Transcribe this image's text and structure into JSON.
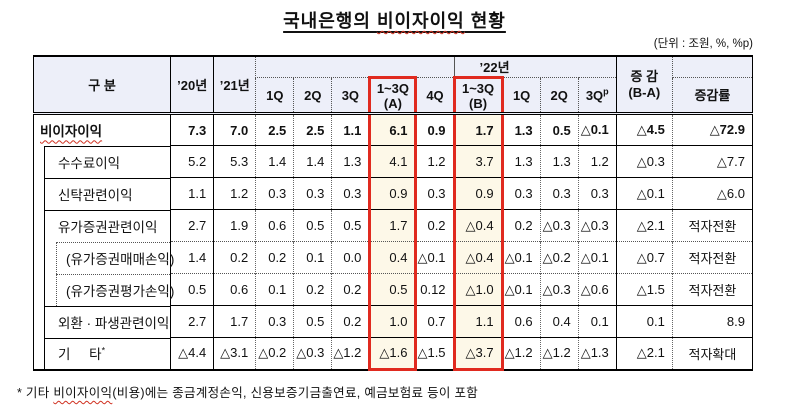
{
  "title": {
    "pre": "국내은행의 ",
    "wavy": "비이자이익",
    "post": " 현황"
  },
  "unit_note": "(단위 : 조원, %, %p)",
  "header": {
    "gubun": "구  분",
    "y20": "’20년",
    "y21": "’21년",
    "y22": "’22년",
    "change": {
      "line1": "증 감",
      "line2": "(B-A)"
    },
    "change_rate": "증감률",
    "subcols": [
      {
        "label": "1Q"
      },
      {
        "label": "2Q"
      },
      {
        "label": "3Q"
      },
      {
        "label": "1~3Q",
        "line2": "(A)",
        "highlight": true
      },
      {
        "label": "4Q"
      },
      {
        "label": "1~3Q",
        "line2": "(B)",
        "highlight": true
      },
      {
        "label": "1Q"
      },
      {
        "label": "2Q"
      },
      {
        "label": "3Q",
        "sup": "p"
      }
    ]
  },
  "rows": [
    {
      "label": "비이자이익",
      "wavy": true,
      "level": 1,
      "bold": true,
      "topline": "none",
      "values": [
        "7.3",
        "7.0",
        "2.5",
        "2.5",
        "1.1",
        "6.1",
        "0.9",
        "1.7",
        "1.3",
        "0.5",
        "△0.1",
        "△4.5",
        "△72.9"
      ]
    },
    {
      "label": "수수료이익",
      "level": 2,
      "topline": "solid",
      "values": [
        "5.2",
        "5.3",
        "1.4",
        "1.4",
        "1.3",
        "4.1",
        "1.2",
        "3.7",
        "1.3",
        "1.3",
        "1.2",
        "△0.3",
        "△7.7"
      ]
    },
    {
      "label": "신탁관련이익",
      "level": 2,
      "topline": "solid",
      "values": [
        "1.1",
        "1.2",
        "0.3",
        "0.3",
        "0.3",
        "0.9",
        "0.3",
        "0.9",
        "0.3",
        "0.3",
        "0.3",
        "△0.1",
        "△6.0"
      ]
    },
    {
      "label": "유가증권관련이익",
      "level": 2,
      "topline": "solid",
      "values": [
        "2.7",
        "1.9",
        "0.6",
        "0.5",
        "0.5",
        "1.7",
        "0.2",
        "△0.4",
        "0.2",
        "△0.3",
        "△0.3",
        "△2.1",
        "적자전환"
      ]
    },
    {
      "label": "(유가증권매매손익)",
      "level": 3,
      "topline": "dotted",
      "values": [
        "1.4",
        "0.2",
        "0.2",
        "0.1",
        "0.0",
        "0.4",
        "△0.1",
        "△0.4",
        "△0.1",
        "△0.2",
        "△0.1",
        "△0.7",
        "적자전환"
      ]
    },
    {
      "label": "(유가증권평가손익)",
      "level": 3,
      "topline": "dotted",
      "values": [
        "0.5",
        "0.6",
        "0.1",
        "0.2",
        "0.2",
        "0.5",
        "0.12",
        "△1.0",
        "△0.1",
        "△0.3",
        "△0.6",
        "△1.5",
        "적자전환"
      ]
    },
    {
      "label": "외환 · 파생관련이익",
      "level": 2,
      "topline": "solid",
      "values": [
        "2.7",
        "1.7",
        "0.3",
        "0.5",
        "0.2",
        "1.0",
        "0.7",
        "1.1",
        "0.6",
        "0.4",
        "0.1",
        "0.1",
        "8.9"
      ]
    },
    {
      "label": "기     타",
      "sup": "*",
      "level": 2,
      "topline": "solid",
      "values": [
        "△4.4",
        "△3.1",
        "△0.2",
        "△0.3",
        "△1.2",
        "△1.6",
        "△1.5",
        "△3.7",
        "△1.2",
        "△1.2",
        "△1.3",
        "△2.1",
        "적자확대"
      ]
    }
  ],
  "footnote": {
    "pre": "* 기타 ",
    "wavy": "비이자이익",
    "post": "(비용)에는 종금계정손익, 신용보증기금출연료, 예금보험료 등이 포함"
  },
  "colors": {
    "header_bg": "#edeff9",
    "highlight_bg": "#fdf8e8",
    "red_box": "#e02a1f",
    "squiggle": "#d03020"
  }
}
